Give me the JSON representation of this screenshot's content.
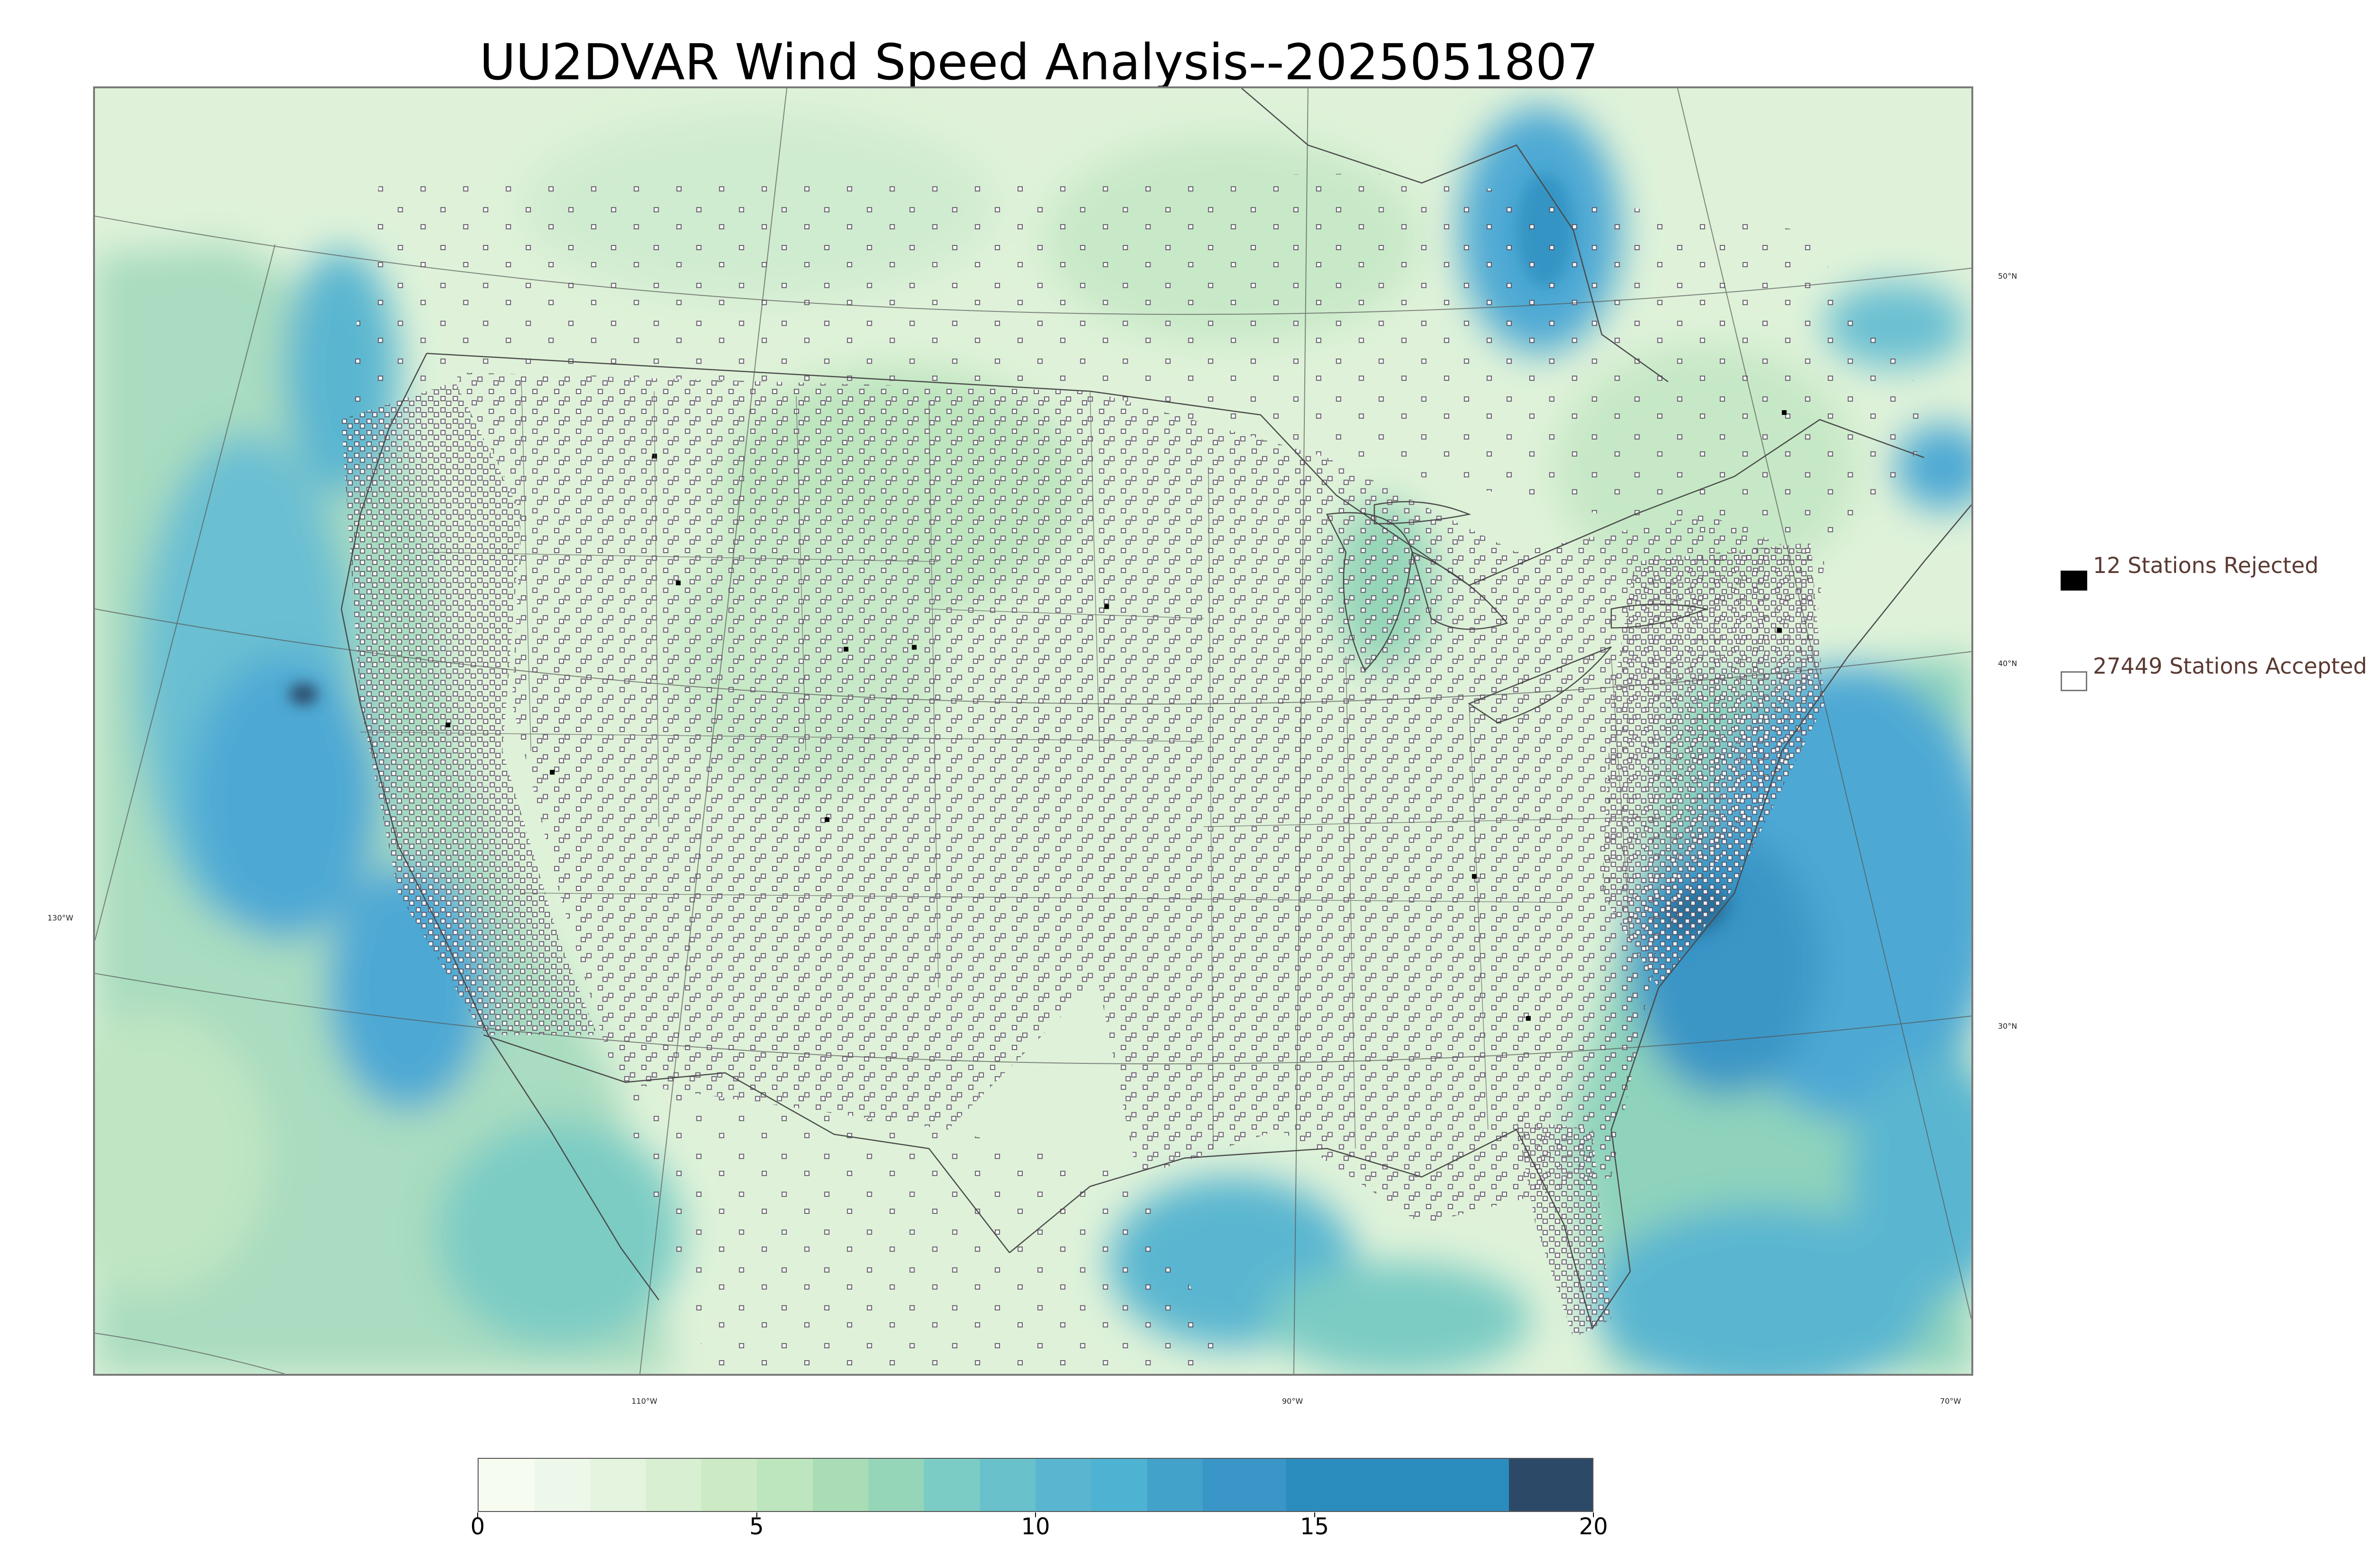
{
  "title": "UU2DVAR Wind Speed Analysis--2025051807",
  "map": {
    "lon_labels": [
      "130°W",
      "110°W",
      "90°W",
      "70°W"
    ],
    "lat_labels": [
      "50°N",
      "40°N",
      "30°N"
    ],
    "colors": {
      "land_base": "#e3f4de",
      "ocean_calm": "#a8dcc0",
      "ocean_windy": "#4ea9d4",
      "ocean_strong": "#2a7fb8",
      "max_wind": "#2c4a68",
      "borders": "#4a4a4a",
      "station_accepted_fill": "#ffffff",
      "station_accepted_edge": "#5a5060",
      "station_rejected": "#000000"
    }
  },
  "legend": {
    "rejected_label": "12 Stations Rejected",
    "accepted_label": "27449 Stations Accepted",
    "rejected_count": 12,
    "accepted_count": 27449
  },
  "colorbar": {
    "min": 0,
    "max": 20,
    "tick_labels": [
      "0",
      "5",
      "10",
      "15",
      "20"
    ],
    "ticks": [
      0,
      5,
      10,
      15,
      20
    ],
    "bins": [
      {
        "from": 0,
        "to": 1,
        "color": "#f7fcf0"
      },
      {
        "from": 1,
        "to": 2,
        "color": "#eef8ea"
      },
      {
        "from": 2,
        "to": 3,
        "color": "#e4f4de"
      },
      {
        "from": 3,
        "to": 4,
        "color": "#d8efd2"
      },
      {
        "from": 4,
        "to": 5,
        "color": "#ccebc5"
      },
      {
        "from": 5,
        "to": 6,
        "color": "#bde5be"
      },
      {
        "from": 6,
        "to": 7,
        "color": "#a8ddb5"
      },
      {
        "from": 7,
        "to": 8,
        "color": "#95d5b8"
      },
      {
        "from": 8,
        "to": 9,
        "color": "#7bccc4"
      },
      {
        "from": 9,
        "to": 10,
        "color": "#68c1cb"
      },
      {
        "from": 10,
        "to": 11,
        "color": "#5ab6d0"
      },
      {
        "from": 11,
        "to": 12,
        "color": "#4eb3d3"
      },
      {
        "from": 12,
        "to": 13,
        "color": "#43a2ca"
      },
      {
        "from": 13,
        "to": 14.5,
        "color": "#3a96c6"
      },
      {
        "from": 14.5,
        "to": 18.5,
        "color": "#2b8cbe"
      },
      {
        "from": 18.5,
        "to": 20,
        "color": "#2c4a68"
      }
    ]
  }
}
